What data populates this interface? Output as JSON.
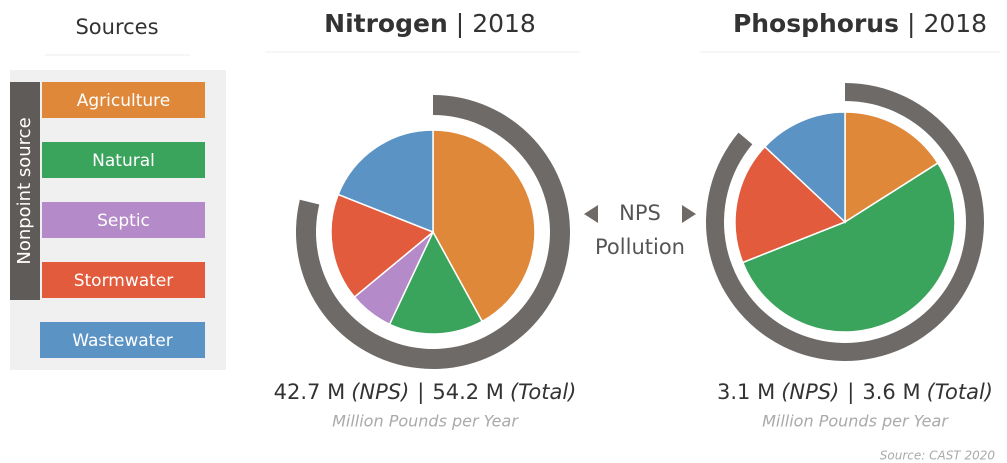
{
  "legend": {
    "title": "Sources",
    "group_label": "Nonpoint source"
  },
  "center_label": [
    "NPS",
    "Pollution"
  ],
  "separator": "|",
  "source": "Source: CAST 2020",
  "chart_data": [
    {
      "type": "pie",
      "title": "Nitrogen",
      "year": "2018",
      "categories": [
        "Agriculture",
        "Natural",
        "Septic",
        "Stormwater",
        "Wastewater"
      ],
      "values": [
        42,
        15,
        7,
        17,
        19
      ],
      "colors": [
        "#e0883a",
        "#3aa35c",
        "#b48ac8",
        "#e15b3c",
        "#5b93c4"
      ],
      "ring_color": "#6e6a67",
      "totals": {
        "values": [
          42.7,
          54.2
        ],
        "value_labels": [
          "42.7 M",
          "54.2 M"
        ],
        "tags": [
          "(NPS)",
          "(Total)"
        ]
      },
      "unit": "Million Pounds per Year"
    },
    {
      "type": "pie",
      "title": "Phosphorus",
      "year": "2018",
      "categories": [
        "Agriculture",
        "Natural",
        "Septic",
        "Stormwater",
        "Wastewater"
      ],
      "values": [
        16,
        53,
        0,
        18,
        13
      ],
      "colors": [
        "#e0883a",
        "#3aa35c",
        "#b48ac8",
        "#e15b3c",
        "#5b93c4"
      ],
      "ring_color": "#6e6a67",
      "totals": {
        "values": [
          3.1,
          3.6
        ],
        "value_labels": [
          "3.1 M",
          "3.6 M"
        ],
        "tags": [
          "(NPS)",
          "(Total)"
        ]
      },
      "unit": "Million Pounds per Year"
    }
  ]
}
